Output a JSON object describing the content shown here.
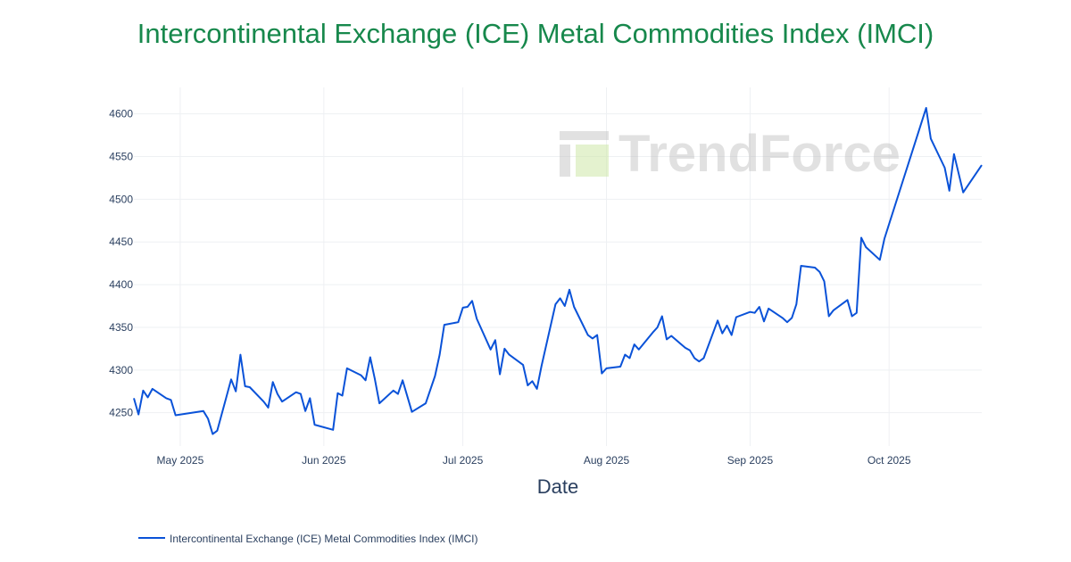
{
  "chart_data": {
    "type": "line",
    "title": "Intercontinental Exchange (ICE) Metal Commodities Index (IMCI)",
    "xlabel": "Date",
    "ylabel": "",
    "xlim": [
      "2025-04-21",
      "2025-10-21"
    ],
    "ylim": [
      4211,
      4631
    ],
    "grid": true,
    "legend_position": "bottom-left",
    "line_color": "#0a52d8",
    "title_color": "#17884c",
    "watermark": "TrendForce",
    "x_ticks": [
      {
        "date": "2025-05-01",
        "label": "May 2025"
      },
      {
        "date": "2025-06-01",
        "label": "Jun 2025"
      },
      {
        "date": "2025-07-01",
        "label": "Jul 2025"
      },
      {
        "date": "2025-08-01",
        "label": "Aug 2025"
      },
      {
        "date": "2025-09-01",
        "label": "Sep 2025"
      },
      {
        "date": "2025-10-01",
        "label": "Oct 2025"
      }
    ],
    "y_ticks": [
      4250,
      4300,
      4350,
      4400,
      4450,
      4500,
      4550,
      4600
    ],
    "series": [
      {
        "name": "Intercontinental Exchange (ICE) Metal Commodities Index (IMCI)",
        "points": [
          [
            "2025-04-21",
            4267
          ],
          [
            "2025-04-22",
            4248
          ],
          [
            "2025-04-23",
            4276
          ],
          [
            "2025-04-24",
            4268
          ],
          [
            "2025-04-25",
            4278
          ],
          [
            "2025-04-28",
            4267
          ],
          [
            "2025-04-29",
            4265
          ],
          [
            "2025-04-30",
            4247
          ],
          [
            "2025-05-06",
            4252
          ],
          [
            "2025-05-07",
            4243
          ],
          [
            "2025-05-08",
            4225
          ],
          [
            "2025-05-09",
            4229
          ],
          [
            "2025-05-12",
            4289
          ],
          [
            "2025-05-13",
            4275
          ],
          [
            "2025-05-14",
            4318
          ],
          [
            "2025-05-15",
            4281
          ],
          [
            "2025-05-16",
            4280
          ],
          [
            "2025-05-19",
            4263
          ],
          [
            "2025-05-20",
            4256
          ],
          [
            "2025-05-21",
            4286
          ],
          [
            "2025-05-22",
            4272
          ],
          [
            "2025-05-23",
            4263
          ],
          [
            "2025-05-26",
            4274
          ],
          [
            "2025-05-27",
            4272
          ],
          [
            "2025-05-28",
            4252
          ],
          [
            "2025-05-29",
            4267
          ],
          [
            "2025-05-30",
            4236
          ],
          [
            "2025-06-03",
            4230
          ],
          [
            "2025-06-04",
            4273
          ],
          [
            "2025-06-05",
            4270
          ],
          [
            "2025-06-06",
            4302
          ],
          [
            "2025-06-09",
            4294
          ],
          [
            "2025-06-10",
            4288
          ],
          [
            "2025-06-11",
            4315
          ],
          [
            "2025-06-12",
            4290
          ],
          [
            "2025-06-13",
            4261
          ],
          [
            "2025-06-16",
            4276
          ],
          [
            "2025-06-17",
            4272
          ],
          [
            "2025-06-18",
            4288
          ],
          [
            "2025-06-20",
            4251
          ],
          [
            "2025-06-23",
            4261
          ],
          [
            "2025-06-25",
            4293
          ],
          [
            "2025-06-26",
            4318
          ],
          [
            "2025-06-27",
            4353
          ],
          [
            "2025-06-30",
            4356
          ],
          [
            "2025-07-01",
            4373
          ],
          [
            "2025-07-02",
            4374
          ],
          [
            "2025-07-03",
            4381
          ],
          [
            "2025-07-04",
            4360
          ],
          [
            "2025-07-07",
            4324
          ],
          [
            "2025-07-08",
            4335
          ],
          [
            "2025-07-09",
            4295
          ],
          [
            "2025-07-10",
            4325
          ],
          [
            "2025-07-11",
            4318
          ],
          [
            "2025-07-14",
            4306
          ],
          [
            "2025-07-15",
            4282
          ],
          [
            "2025-07-16",
            4287
          ],
          [
            "2025-07-17",
            4278
          ],
          [
            "2025-07-18",
            4305
          ],
          [
            "2025-07-21",
            4377
          ],
          [
            "2025-07-22",
            4384
          ],
          [
            "2025-07-23",
            4375
          ],
          [
            "2025-07-24",
            4394
          ],
          [
            "2025-07-25",
            4374
          ],
          [
            "2025-07-28",
            4341
          ],
          [
            "2025-07-29",
            4337
          ],
          [
            "2025-07-30",
            4341
          ],
          [
            "2025-07-31",
            4296
          ],
          [
            "2025-08-01",
            4302
          ],
          [
            "2025-08-04",
            4304
          ],
          [
            "2025-08-05",
            4318
          ],
          [
            "2025-08-06",
            4314
          ],
          [
            "2025-08-07",
            4330
          ],
          [
            "2025-08-08",
            4324
          ],
          [
            "2025-08-11",
            4344
          ],
          [
            "2025-08-12",
            4350
          ],
          [
            "2025-08-13",
            4363
          ],
          [
            "2025-08-14",
            4336
          ],
          [
            "2025-08-15",
            4340
          ],
          [
            "2025-08-18",
            4326
          ],
          [
            "2025-08-19",
            4323
          ],
          [
            "2025-08-20",
            4314
          ],
          [
            "2025-08-21",
            4310
          ],
          [
            "2025-08-22",
            4314
          ],
          [
            "2025-08-25",
            4358
          ],
          [
            "2025-08-26",
            4343
          ],
          [
            "2025-08-27",
            4352
          ],
          [
            "2025-08-28",
            4341
          ],
          [
            "2025-08-29",
            4362
          ],
          [
            "2025-09-01",
            4368
          ],
          [
            "2025-09-02",
            4367
          ],
          [
            "2025-09-03",
            4374
          ],
          [
            "2025-09-04",
            4357
          ],
          [
            "2025-09-05",
            4372
          ],
          [
            "2025-09-08",
            4361
          ],
          [
            "2025-09-09",
            4356
          ],
          [
            "2025-09-10",
            4361
          ],
          [
            "2025-09-11",
            4377
          ],
          [
            "2025-09-12",
            4422
          ],
          [
            "2025-09-15",
            4420
          ],
          [
            "2025-09-16",
            4415
          ],
          [
            "2025-09-17",
            4404
          ],
          [
            "2025-09-18",
            4363
          ],
          [
            "2025-09-19",
            4370
          ],
          [
            "2025-09-22",
            4382
          ],
          [
            "2025-09-23",
            4363
          ],
          [
            "2025-09-24",
            4367
          ],
          [
            "2025-09-25",
            4455
          ],
          [
            "2025-09-26",
            4444
          ],
          [
            "2025-09-29",
            4429
          ],
          [
            "2025-09-30",
            4454
          ],
          [
            "2025-10-09",
            4607
          ],
          [
            "2025-10-10",
            4571
          ],
          [
            "2025-10-13",
            4537
          ],
          [
            "2025-10-14",
            4510
          ],
          [
            "2025-10-15",
            4553
          ],
          [
            "2025-10-17",
            4508
          ],
          [
            "2025-10-21",
            4540
          ]
        ]
      }
    ]
  }
}
